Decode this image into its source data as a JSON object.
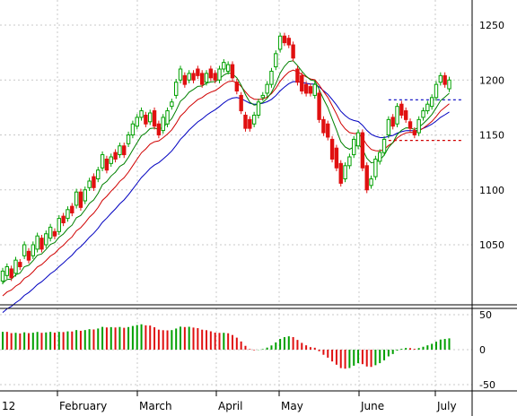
{
  "chart_data": {
    "type": "candlestick",
    "price_panel": {
      "y_ticks": [
        1050,
        1100,
        1150,
        1200,
        1250
      ],
      "ylim": [
        1000,
        1270
      ],
      "grid": true,
      "candles": [
        [
          1,
          1017,
          1026
        ],
        [
          2,
          1022,
          1030
        ],
        [
          3,
          1028,
          1020
        ],
        [
          4,
          1024,
          1036
        ],
        [
          5,
          1034,
          1030
        ],
        [
          6,
          1040,
          1050
        ],
        [
          7,
          1044,
          1036
        ],
        [
          8,
          1040,
          1050
        ],
        [
          9,
          1046,
          1058
        ],
        [
          10,
          1056,
          1046
        ],
        [
          11,
          1050,
          1060
        ],
        [
          12,
          1056,
          1066
        ],
        [
          13,
          1062,
          1058
        ],
        [
          14,
          1062,
          1074
        ],
        [
          15,
          1076,
          1070
        ],
        [
          16,
          1074,
          1082
        ],
        [
          17,
          1085,
          1079
        ],
        [
          18,
          1086,
          1098
        ],
        [
          19,
          1098,
          1084
        ],
        [
          20,
          1090,
          1100
        ],
        [
          21,
          1102,
          1108
        ],
        [
          22,
          1112,
          1102
        ],
        [
          23,
          1110,
          1118
        ],
        [
          24,
          1120,
          1132
        ],
        [
          25,
          1128,
          1118
        ],
        [
          26,
          1124,
          1130
        ],
        [
          27,
          1134,
          1128
        ],
        [
          28,
          1132,
          1140
        ],
        [
          29,
          1140,
          1132
        ],
        [
          30,
          1142,
          1150
        ],
        [
          31,
          1150,
          1160
        ],
        [
          32,
          1158,
          1166
        ],
        [
          33,
          1166,
          1172
        ],
        [
          34,
          1168,
          1160
        ],
        [
          35,
          1162,
          1170
        ],
        [
          36,
          1172,
          1158
        ],
        [
          37,
          1160,
          1150
        ],
        [
          38,
          1154,
          1166
        ],
        [
          39,
          1160,
          1172
        ],
        [
          40,
          1176,
          1180
        ],
        [
          41,
          1186,
          1198
        ],
        [
          42,
          1200,
          1210
        ],
        [
          43,
          1204,
          1196
        ],
        [
          44,
          1200,
          1206
        ],
        [
          45,
          1206,
          1200
        ],
        [
          46,
          1210,
          1204
        ],
        [
          47,
          1206,
          1196
        ],
        [
          48,
          1198,
          1206
        ],
        [
          49,
          1210,
          1202
        ],
        [
          50,
          1206,
          1200
        ],
        [
          51,
          1200,
          1210
        ],
        [
          52,
          1210,
          1216
        ],
        [
          53,
          1208,
          1214
        ],
        [
          54,
          1214,
          1202
        ],
        [
          55,
          1198,
          1190
        ],
        [
          56,
          1186,
          1172
        ],
        [
          57,
          1168,
          1156
        ],
        [
          58,
          1164,
          1156
        ],
        [
          59,
          1160,
          1168
        ],
        [
          60,
          1168,
          1180
        ],
        [
          61,
          1184,
          1186
        ],
        [
          62,
          1188,
          1196
        ],
        [
          63,
          1196,
          1208
        ],
        [
          64,
          1212,
          1224
        ],
        [
          65,
          1228,
          1240
        ],
        [
          66,
          1240,
          1234
        ],
        [
          67,
          1238,
          1232
        ],
        [
          68,
          1232,
          1220
        ],
        [
          69,
          1210,
          1198
        ],
        [
          70,
          1204,
          1190
        ],
        [
          71,
          1196,
          1188
        ],
        [
          72,
          1194,
          1188
        ],
        [
          73,
          1186,
          1196
        ],
        [
          74,
          1188,
          1164
        ],
        [
          75,
          1164,
          1152
        ],
        [
          76,
          1160,
          1148
        ],
        [
          77,
          1146,
          1128
        ],
        [
          78,
          1138,
          1120
        ],
        [
          79,
          1124,
          1106
        ],
        [
          80,
          1110,
          1122
        ],
        [
          81,
          1122,
          1130
        ],
        [
          82,
          1132,
          1146
        ],
        [
          83,
          1140,
          1152
        ],
        [
          84,
          1152,
          1120
        ],
        [
          85,
          1122,
          1100
        ],
        [
          86,
          1104,
          1110
        ],
        [
          87,
          1112,
          1128
        ],
        [
          88,
          1126,
          1134
        ],
        [
          89,
          1134,
          1146
        ],
        [
          90,
          1150,
          1164
        ],
        [
          91,
          1166,
          1158
        ],
        [
          92,
          1160,
          1176
        ],
        [
          93,
          1178,
          1168
        ],
        [
          94,
          1172,
          1164
        ],
        [
          95,
          1162,
          1156
        ],
        [
          96,
          1154,
          1150
        ],
        [
          97,
          1152,
          1164
        ],
        [
          98,
          1166,
          1172
        ],
        [
          99,
          1172,
          1178
        ],
        [
          100,
          1176,
          1184
        ],
        [
          101,
          1184,
          1196
        ],
        [
          102,
          1198,
          1204
        ],
        [
          103,
          1204,
          1196
        ],
        [
          104,
          1192,
          1200
        ]
      ]
    },
    "oscillator_panel": {
      "y_ticks": [
        50,
        0,
        -50
      ],
      "ylim": [
        -65,
        62
      ],
      "type": "bar"
    },
    "x_axis": {
      "month_labels": [
        "12",
        "February",
        "March",
        "April",
        "May",
        "June",
        "July"
      ]
    },
    "colors": {
      "up": "#00a000",
      "down": "#e01010",
      "ma_fast": "#008000",
      "ma_mid": "#d00000",
      "ma_slow": "#0000c0",
      "dotted_blue": "#0000c0",
      "dotted_red": "#d00000",
      "grid": "#c8c8c8"
    }
  }
}
